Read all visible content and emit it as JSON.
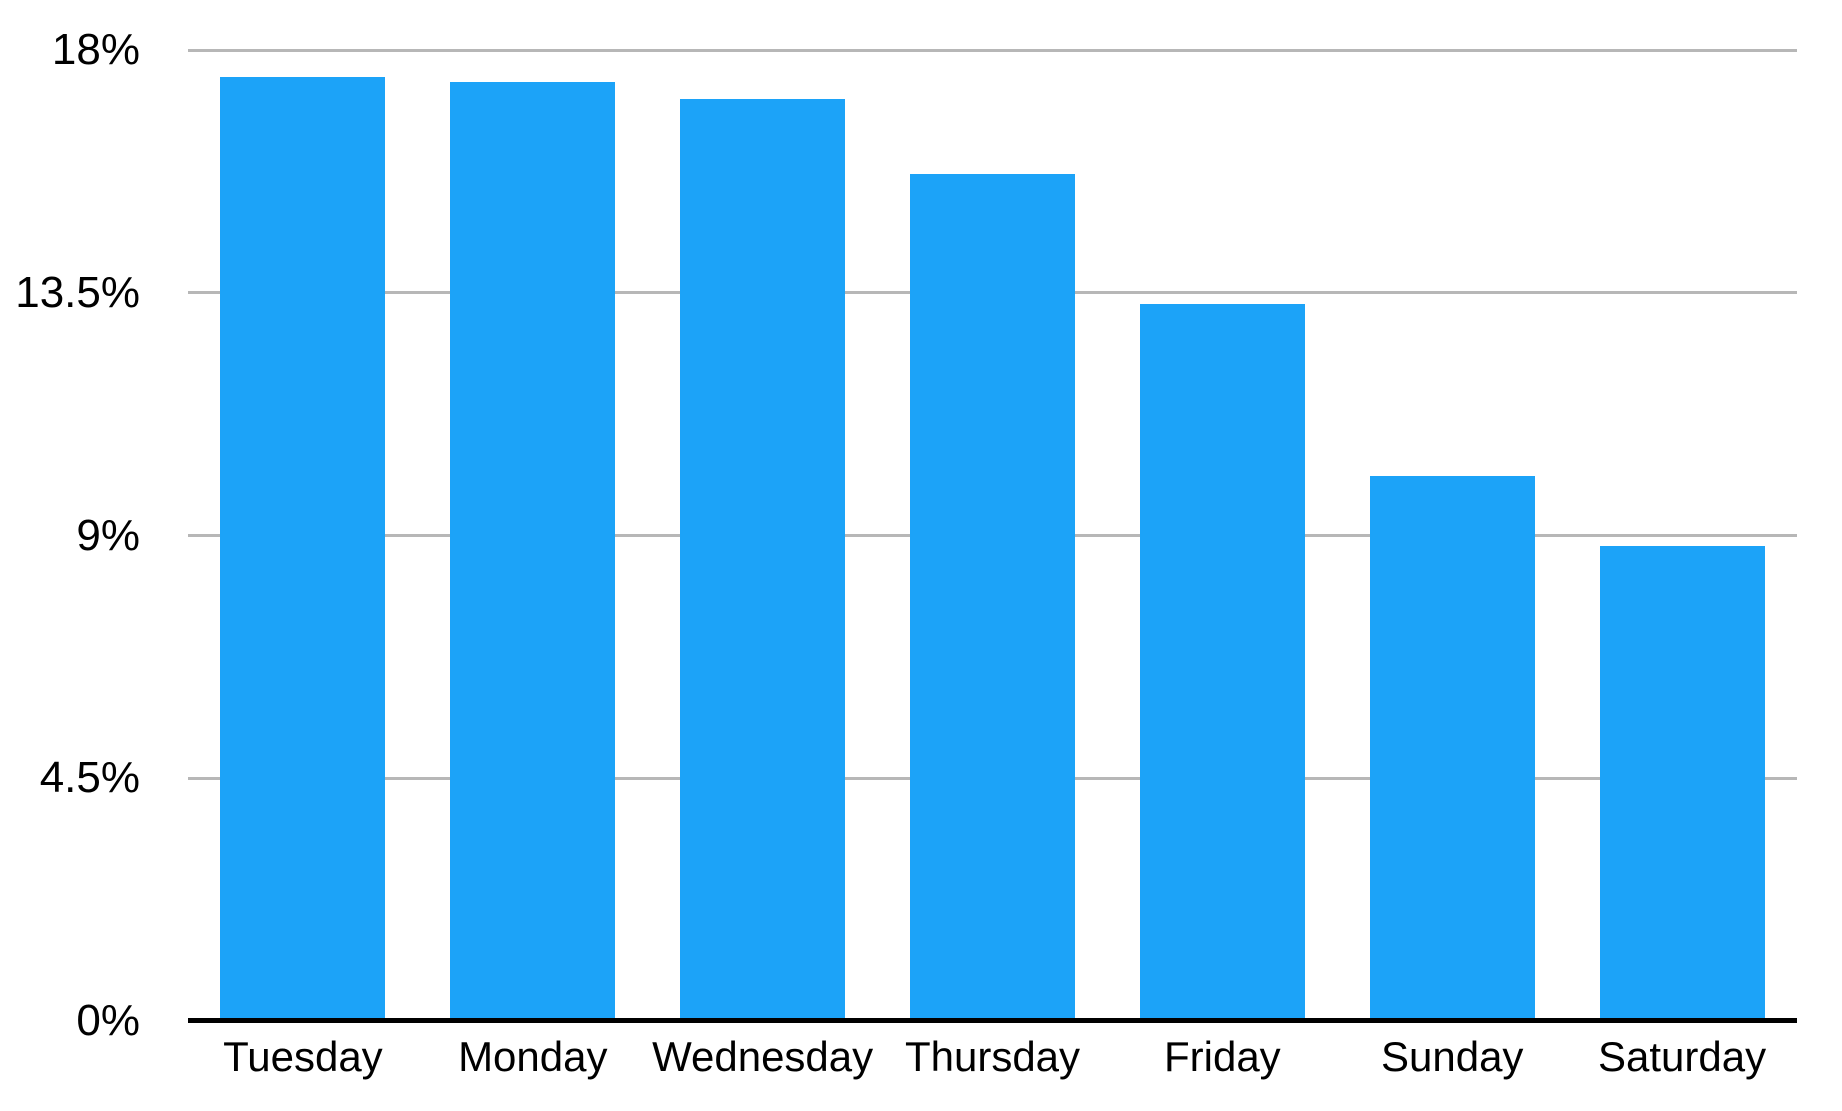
{
  "chart_data": {
    "type": "bar",
    "title": "",
    "xlabel": "",
    "ylabel": "",
    "categories": [
      "Tuesday",
      "Monday",
      "Wednesday",
      "Thursday",
      "Friday",
      "Sunday",
      "Saturday"
    ],
    "values": [
      17.5,
      17.4,
      17.1,
      15.7,
      13.3,
      10.1,
      8.8
    ],
    "unit": "%",
    "ylim": [
      0,
      18
    ],
    "yticks": [
      0,
      4.5,
      9,
      13.5,
      18
    ],
    "ytick_labels": [
      "0%",
      "4.5%",
      "9%",
      "13.5%",
      "18%"
    ],
    "grid": true,
    "legend_position": "none",
    "colors": {
      "bar": "#1ca3f8",
      "gridline": "#b7b7b7",
      "axis_line": "#000000",
      "label_text": "#000000",
      "background": "#ffffff"
    }
  }
}
